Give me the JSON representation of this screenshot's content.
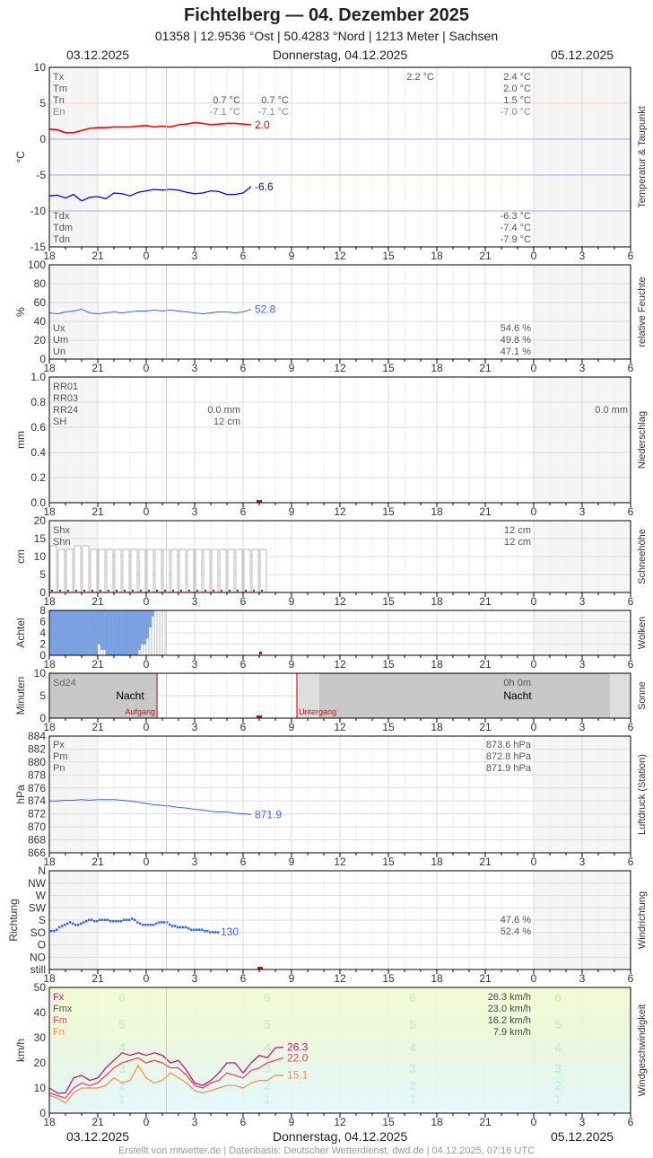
{
  "header": {
    "title": "Fichtelberg  —  04. Dezember 2025",
    "subtitle": "01358  |  12.9536 °Ost  |  50.4283 °Nord  |  1213 Meter  |  Sachsen",
    "date_left": "03.12.2025",
    "date_center": "Donnerstag, 04.12.2025",
    "date_right": "05.12.2025"
  },
  "footer": "Erstellt von mtwetter.de | Datenbasis: Deutscher Wetterdienst, dwd.de | 04.12.2025, 07:16 UTC",
  "x_axis": {
    "start_hour": 18,
    "span_hours": 36,
    "tick_labels": [
      "18",
      "21",
      "0",
      "3",
      "6",
      "9",
      "12",
      "15",
      "18",
      "21",
      "0",
      "3",
      "6"
    ],
    "now_hour": 7.25
  },
  "colors": {
    "temp": "#ff0000",
    "dewpoint": "#0000ff",
    "humidity": "#3366ff",
    "pressure": "#3366ff",
    "clouds": "#7da4e8",
    "gust": "#cc1177",
    "mean_wind": "#ee4466",
    "min_wind": "#ff8844"
  },
  "chart_data": [
    {
      "type": "line",
      "ylabel": "°C",
      "side_label": "Temperatur & Taupunkt",
      "ylim": [
        -15,
        10
      ],
      "yticks": [
        "10",
        "5",
        "0",
        "-5",
        "-10",
        "-15"
      ],
      "series": [
        {
          "name": "T",
          "start": "18:00",
          "step_minutes": 30,
          "end_label": "2.0",
          "values": [
            1.4,
            1.3,
            0.9,
            0.9,
            1.2,
            1.5,
            1.6,
            1.6,
            1.7,
            1.7,
            1.7,
            1.8,
            1.9,
            1.7,
            1.8,
            1.7,
            2.0,
            2.1,
            2.3,
            2.2,
            2.0,
            2.1,
            2.2,
            2.2,
            2.1,
            2.0
          ]
        },
        {
          "name": "Td",
          "start": "18:00",
          "step_minutes": 30,
          "end_label": "-6.6",
          "values": [
            -7.9,
            -7.8,
            -8.2,
            -7.7,
            -8.6,
            -8.1,
            -8.0,
            -8.3,
            -7.5,
            -7.6,
            -7.9,
            -7.4,
            -7.2,
            -7.0,
            -7.1,
            -7.0,
            -7.1,
            -7.4,
            -7.6,
            -7.5,
            -7.2,
            -7.3,
            -7.7,
            -7.7,
            -7.5,
            -6.6
          ]
        }
      ],
      "stats_left": [
        [
          "Tx",
          ""
        ],
        [
          "Tm",
          ""
        ],
        [
          "Tn",
          "0.7 °C"
        ],
        [
          "En",
          "-7.1 °C"
        ]
      ],
      "stats_mid": [
        [
          "",
          ""
        ],
        [
          "",
          ""
        ],
        [
          "",
          "0.7 °C"
        ],
        [
          "",
          "-7.1 °C"
        ]
      ],
      "stats_day": [
        [
          "",
          "2.2 °C"
        ]
      ],
      "stats_right": [
        [
          "",
          "2.4 °C"
        ],
        [
          "",
          "2.0 °C"
        ],
        [
          "",
          "1.5 °C"
        ],
        [
          "",
          "-7.0 °C"
        ]
      ],
      "stats_left_bottom": [
        "Tdx",
        "Tdm",
        "Tdn"
      ],
      "stats_right_bottom": [
        "-6.3 °C",
        "-7.4 °C",
        "-7.9 °C"
      ]
    },
    {
      "type": "line",
      "ylabel": "%",
      "side_label": "relative Feuchte",
      "ylim": [
        0,
        100
      ],
      "yticks": [
        "100",
        "80",
        "60",
        "40",
        "20",
        "0"
      ],
      "series": [
        {
          "name": "U",
          "start": "18:00",
          "step_minutes": 30,
          "end_label": "52.8",
          "values": [
            49,
            48,
            50,
            51,
            53,
            49,
            48,
            49,
            50,
            49,
            50,
            51,
            51,
            52,
            51,
            52,
            51,
            50,
            49,
            48,
            49,
            50,
            50,
            49,
            50,
            52.8
          ]
        }
      ],
      "stats_left": [
        "Ux",
        "Um",
        "Un"
      ],
      "stats_right": [
        "54.6 %",
        "49.8 %",
        "47.1 %"
      ]
    },
    {
      "type": "bar",
      "ylabel": "mm",
      "side_label": "Niederschlag",
      "ylim": [
        0,
        1
      ],
      "yticks": [
        "1.0",
        "0.8",
        "0.6",
        "0.4",
        "0.2",
        "0.0"
      ],
      "stats_left": [
        "RR01",
        "RR03",
        "RR24",
        "SH"
      ],
      "stats_mid": [
        "",
        "",
        "0.0 mm",
        "12 cm"
      ],
      "stats_right": [
        "",
        "",
        "0.0 mm",
        ""
      ]
    },
    {
      "type": "bar",
      "ylabel": "cm",
      "side_label": "Schneehöhe",
      "ylim": [
        0,
        20
      ],
      "yticks": [
        "20",
        "15",
        "10",
        "5",
        "0"
      ],
      "series": [
        {
          "name": "SH",
          "start": "18:00",
          "step_minutes": 30,
          "values": [
            13,
            12,
            12,
            13,
            13,
            12,
            12,
            12,
            12,
            12,
            12,
            12,
            12,
            12,
            12,
            12,
            12,
            12,
            12,
            12,
            12,
            12,
            12,
            12,
            12,
            12,
            12
          ]
        }
      ],
      "stats_left": [
        "Shx",
        "Shn"
      ],
      "stats_right": [
        "12 cm",
        "12 cm"
      ]
    },
    {
      "type": "bar",
      "ylabel": "Achtel",
      "side_label": "Wolken",
      "ylim": [
        0,
        8
      ],
      "yticks": [
        "8",
        "6",
        "4",
        "2",
        "0"
      ],
      "series": [
        {
          "name": "N",
          "start": "18:00",
          "step_minutes": 10,
          "values": [
            8,
            8,
            8,
            8,
            8,
            8,
            8,
            8,
            8,
            8,
            8,
            8,
            8,
            8,
            8,
            8,
            8,
            8,
            6,
            7,
            7,
            8,
            8,
            8,
            8,
            8,
            8,
            8,
            8,
            8,
            8,
            8,
            8,
            8,
            8,
            8,
            8,
            8,
            8,
            8,
            8,
            8,
            8,
            8,
            8,
            8,
            8,
            8,
            8,
            8,
            8,
            8,
            8,
            8,
            8,
            8,
            8,
            8,
            8,
            8,
            8,
            8,
            8,
            8,
            8,
            8,
            8,
            8,
            8,
            8,
            8,
            8,
            8,
            8,
            8,
            8,
            8,
            8,
            8,
            8,
            8,
            8,
            8,
            8,
            8,
            8,
            8,
            8,
            8,
            8
          ]
        },
        {
          "name": "blue",
          "start": "18:00",
          "step_minutes": 10,
          "values": [
            8,
            8,
            8,
            8,
            8,
            8,
            8,
            8,
            8,
            8,
            8,
            8,
            8,
            8,
            8,
            8,
            8,
            8,
            6,
            7,
            7,
            8,
            8,
            8,
            8,
            8,
            8,
            8,
            8,
            8,
            8,
            8,
            8,
            7,
            6,
            6,
            5,
            3,
            1,
            0,
            0,
            0,
            0,
            0,
            1,
            1,
            1,
            0,
            0,
            0,
            0,
            0,
            0,
            0,
            0,
            0,
            0,
            0,
            0,
            0,
            0,
            0,
            0,
            0,
            0,
            0,
            0,
            0,
            0,
            0,
            0,
            0,
            0,
            0,
            0,
            0,
            0,
            0
          ]
        }
      ]
    },
    {
      "type": "area",
      "ylabel": "Minuten",
      "side_label": "Sonne",
      "ylim": [
        0,
        10
      ],
      "yticks": [
        "10",
        "5",
        "0"
      ],
      "stats_left": [
        "Sd24"
      ],
      "stats_right": [
        "0h 0m"
      ],
      "night_label": "Nacht",
      "sunrise_label": "Aufgang",
      "sunset_label": "Untergang",
      "sunrise_hour": 6.67,
      "sunset_hour": 15.33
    },
    {
      "type": "line",
      "ylabel": "hPa",
      "side_label": "Luftdruck (Station)",
      "ylim": [
        866,
        884
      ],
      "yticks": [
        "884",
        "882",
        "880",
        "878",
        "876",
        "874",
        "872",
        "870",
        "868",
        "866"
      ],
      "series": [
        {
          "name": "P",
          "start": "18:00",
          "step_minutes": 30,
          "end_label": "871.9",
          "values": [
            874.0,
            874.0,
            874.1,
            874.1,
            874.2,
            874.1,
            874.2,
            874.2,
            874.2,
            874.1,
            874.0,
            873.8,
            873.6,
            873.4,
            873.3,
            873.2,
            873.0,
            872.9,
            872.7,
            872.6,
            872.4,
            872.3,
            872.3,
            872.1,
            872.0,
            871.9
          ]
        }
      ],
      "stats_left": [
        "Px",
        "Pm",
        "Pn"
      ],
      "stats_right": [
        "873.6 hPa",
        "872.8 hPa",
        "871.9 hPa"
      ]
    },
    {
      "type": "scatter",
      "ylabel": "Richtung",
      "side_label": "Windrichtung",
      "yticks": [
        "N",
        "NW",
        "W",
        "SW",
        "S",
        "SO",
        "O",
        "NO",
        "still"
      ],
      "series": [
        {
          "name": "dd",
          "start": "18:00",
          "step_minutes": 10,
          "end_label": "130",
          "values": [
            135,
            135,
            140,
            150,
            155,
            160,
            165,
            170,
            165,
            160,
            160,
            165,
            170,
            175,
            180,
            180,
            175,
            175,
            180,
            180,
            180,
            180,
            175,
            175,
            175,
            175,
            175,
            180,
            180,
            180,
            185,
            180,
            170,
            165,
            160,
            160,
            160,
            160,
            160,
            165,
            170,
            170,
            170,
            170,
            160,
            155,
            155,
            150,
            150,
            150,
            150,
            145,
            140,
            140,
            140,
            140,
            140,
            135,
            135,
            130,
            130,
            130,
            130
          ]
        }
      ],
      "stats_right": [
        "47.6 %",
        "52.4 %"
      ]
    },
    {
      "type": "line",
      "ylabel": "km/h",
      "side_label": "Windgeschwindigkeit",
      "ylim": [
        0,
        50
      ],
      "yticks": [
        "50",
        "40",
        "30",
        "20",
        "10",
        "0"
      ],
      "beaufort_labels": [
        "1",
        "2",
        "3",
        "4",
        "5",
        "6"
      ],
      "series": [
        {
          "name": "Fx",
          "start": "18:00",
          "step_minutes": 30,
          "end_label": "26.3",
          "values": [
            10,
            8,
            8,
            14,
            15,
            13,
            14,
            18,
            21,
            24,
            23,
            24,
            23,
            24,
            23,
            20,
            21,
            17,
            12,
            11,
            13,
            16,
            20,
            20,
            16,
            20,
            23,
            22,
            26,
            26.3
          ]
        },
        {
          "name": "Fm",
          "start": "18:00",
          "step_minutes": 30,
          "end_label": "22.0",
          "values": [
            8,
            7,
            6,
            10,
            12,
            11,
            12,
            15,
            18,
            20,
            21,
            22,
            20,
            21,
            20,
            18,
            18,
            15,
            11,
            10,
            12,
            13,
            16,
            15,
            14,
            17,
            18,
            20,
            21,
            22.0
          ]
        },
        {
          "name": "Fn",
          "start": "18:00",
          "step_minutes": 30,
          "end_label": "15.1",
          "values": [
            7,
            6,
            4,
            8,
            10,
            10,
            10,
            11,
            14,
            12,
            13,
            19,
            14,
            12,
            13,
            16,
            14,
            12,
            9,
            8,
            9,
            10,
            11,
            11,
            10,
            12,
            13,
            13,
            15,
            15.1
          ]
        }
      ],
      "stats_left": [
        "Fx",
        "Fmx",
        "Fm",
        "Fn"
      ],
      "stats_right": [
        "26.3 km/h",
        "23.0 km/h",
        "16.2 km/h",
        "7.9 km/h"
      ]
    }
  ]
}
